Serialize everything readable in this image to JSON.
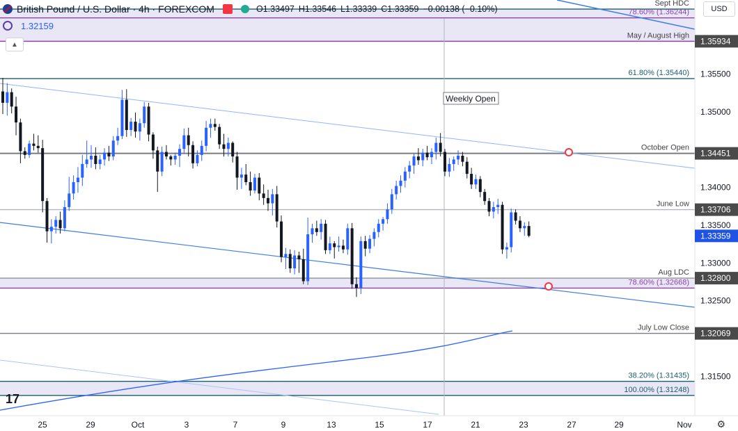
{
  "header": {
    "title": "British Pound / U.S. Dollar · 4h · FOREXCOM",
    "open": "O1.33497",
    "high": "H1.33546",
    "low": "L1.33339",
    "close": "C1.33359",
    "change": "−0.00138 (−0.10%)"
  },
  "indicator": {
    "value": "1.32159"
  },
  "currency_button": "USD",
  "logo_text": "17",
  "colors": {
    "up": "#2962ff",
    "down": "#131722",
    "accent_purple": "#8e44ad",
    "teal_line": "#1b5e6b",
    "band_fill": "#e9e6f5"
  },
  "chart_data": {
    "type": "candlestick",
    "title": "British Pound / U.S. Dollar · 4h · FOREXCOM",
    "y_axis": {
      "range": [
        1.3098,
        1.3648
      ],
      "ticks": [
        "1.35500",
        "1.35000",
        "1.34000",
        "1.33500",
        "1.33000",
        "1.32500",
        "1.31500"
      ]
    },
    "x_axis": {
      "ticks": [
        "25",
        "29",
        "Oct",
        "3",
        "7",
        "9",
        "13",
        "15",
        "17",
        "21",
        "23",
        "27",
        "29",
        "Nov"
      ]
    },
    "levels": [
      {
        "label": "Sept HDC",
        "value": 1.3636
      },
      {
        "label": "78.60% (1.36244)",
        "value": 1.36244
      },
      {
        "label": "May / August High",
        "value": 1.35934,
        "price_label": "1.35934"
      },
      {
        "label": "61.80% (1.35440)",
        "value": 1.3544
      },
      {
        "label": "October Open",
        "value": 1.34451,
        "price_label": "1.34451"
      },
      {
        "label": "June Low",
        "value": 1.33706,
        "price_label": "1.33706"
      },
      {
        "label": "Aug LDC",
        "value": 1.328,
        "price_label": "1.32800"
      },
      {
        "label": "78.60% (1.32668)",
        "value": 1.32668
      },
      {
        "label": "July Low Close",
        "value": 1.32069,
        "price_label": "1.32069"
      },
      {
        "label": "38.20% (1.31435)",
        "value": 1.31435
      },
      {
        "label": "100.00% (1.31248)",
        "value": 1.31248
      }
    ],
    "current_price": "1.33359",
    "annotations": [
      "Weekly Open"
    ],
    "candles": [
      [
        1.3527,
        1.3545,
        1.3497,
        1.3512
      ],
      [
        1.3512,
        1.3538,
        1.3495,
        1.3526
      ],
      [
        1.3526,
        1.3531,
        1.3498,
        1.3507
      ],
      [
        1.3507,
        1.352,
        1.3469,
        1.3486
      ],
      [
        1.3486,
        1.3491,
        1.3432,
        1.3448
      ],
      [
        1.3448,
        1.3453,
        1.3438,
        1.3443
      ],
      [
        1.3443,
        1.3462,
        1.3439,
        1.3458
      ],
      [
        1.3458,
        1.3471,
        1.3449,
        1.3455
      ],
      [
        1.3455,
        1.3469,
        1.3446,
        1.3452
      ],
      [
        1.3452,
        1.3463,
        1.3367,
        1.3382
      ],
      [
        1.3382,
        1.3386,
        1.3327,
        1.3342
      ],
      [
        1.3342,
        1.3358,
        1.3326,
        1.3348
      ],
      [
        1.3348,
        1.3362,
        1.3339,
        1.3357
      ],
      [
        1.3357,
        1.3368,
        1.3339,
        1.3346
      ],
      [
        1.3346,
        1.3383,
        1.3342,
        1.3374
      ],
      [
        1.3374,
        1.3414,
        1.3369,
        1.3392
      ],
      [
        1.3392,
        1.3416,
        1.3384,
        1.3407
      ],
      [
        1.3407,
        1.3427,
        1.3393,
        1.3413
      ],
      [
        1.3413,
        1.3443,
        1.3402,
        1.3431
      ],
      [
        1.3431,
        1.3462,
        1.3426,
        1.3437
      ],
      [
        1.3437,
        1.3456,
        1.3426,
        1.3442
      ],
      [
        1.3442,
        1.3453,
        1.3424,
        1.3431
      ],
      [
        1.3431,
        1.3443,
        1.3424,
        1.3437
      ],
      [
        1.3437,
        1.3452,
        1.3429,
        1.3446
      ],
      [
        1.3446,
        1.3455,
        1.3435,
        1.3441
      ],
      [
        1.3441,
        1.3468,
        1.3436,
        1.3462
      ],
      [
        1.3462,
        1.3479,
        1.3456,
        1.3468
      ],
      [
        1.3468,
        1.3529,
        1.3464,
        1.3516
      ],
      [
        1.3516,
        1.353,
        1.3467,
        1.3476
      ],
      [
        1.3476,
        1.3492,
        1.3468,
        1.3487
      ],
      [
        1.3487,
        1.3499,
        1.3466,
        1.3474
      ],
      [
        1.3474,
        1.3491,
        1.3462,
        1.3485
      ],
      [
        1.3485,
        1.3513,
        1.3479,
        1.3507
      ],
      [
        1.3507,
        1.3512,
        1.3461,
        1.347
      ],
      [
        1.347,
        1.3473,
        1.3438,
        1.3449
      ],
      [
        1.3449,
        1.3454,
        1.3394,
        1.3421
      ],
      [
        1.3421,
        1.3454,
        1.3415,
        1.3447
      ],
      [
        1.3447,
        1.3456,
        1.3437,
        1.3441
      ],
      [
        1.3441,
        1.3443,
        1.3429,
        1.3437
      ],
      [
        1.3437,
        1.3446,
        1.343,
        1.3442
      ],
      [
        1.3442,
        1.3457,
        1.3427,
        1.3451
      ],
      [
        1.3451,
        1.3478,
        1.3445,
        1.3469
      ],
      [
        1.3469,
        1.3479,
        1.3441,
        1.3456
      ],
      [
        1.3456,
        1.3461,
        1.3425,
        1.3432
      ],
      [
        1.3432,
        1.3449,
        1.3428,
        1.3443
      ],
      [
        1.3443,
        1.3462,
        1.3435,
        1.3455
      ],
      [
        1.3455,
        1.3488,
        1.3448,
        1.3479
      ],
      [
        1.3479,
        1.3491,
        1.3466,
        1.3484
      ],
      [
        1.3484,
        1.3491,
        1.3475,
        1.348
      ],
      [
        1.348,
        1.3484,
        1.3451,
        1.3457
      ],
      [
        1.3457,
        1.3471,
        1.3441,
        1.3451
      ],
      [
        1.3451,
        1.3466,
        1.3441,
        1.3459
      ],
      [
        1.3459,
        1.3461,
        1.3433,
        1.3441
      ],
      [
        1.3441,
        1.3447,
        1.3397,
        1.3413
      ],
      [
        1.3413,
        1.3426,
        1.3398,
        1.3417
      ],
      [
        1.3417,
        1.3431,
        1.3403,
        1.3407
      ],
      [
        1.3407,
        1.3421,
        1.3389,
        1.3396
      ],
      [
        1.3396,
        1.3418,
        1.3392,
        1.3413
      ],
      [
        1.3413,
        1.3419,
        1.3383,
        1.3392
      ],
      [
        1.3392,
        1.3404,
        1.3377,
        1.3386
      ],
      [
        1.3386,
        1.3397,
        1.3369,
        1.3379
      ],
      [
        1.3379,
        1.3398,
        1.3363,
        1.3391
      ],
      [
        1.3391,
        1.3402,
        1.3347,
        1.3355
      ],
      [
        1.3355,
        1.3363,
        1.3301,
        1.3308
      ],
      [
        1.3308,
        1.332,
        1.3292,
        1.3312
      ],
      [
        1.3312,
        1.3318,
        1.3287,
        1.3293
      ],
      [
        1.3293,
        1.3317,
        1.3285,
        1.331
      ],
      [
        1.331,
        1.3315,
        1.3287,
        1.3305
      ],
      [
        1.3305,
        1.3319,
        1.3272,
        1.3276
      ],
      [
        1.3276,
        1.336,
        1.3271,
        1.3338
      ],
      [
        1.3338,
        1.3352,
        1.3327,
        1.3346
      ],
      [
        1.3346,
        1.3356,
        1.3336,
        1.3341
      ],
      [
        1.3341,
        1.3358,
        1.3331,
        1.3352
      ],
      [
        1.3352,
        1.3357,
        1.3312,
        1.3317
      ],
      [
        1.3317,
        1.3335,
        1.3312,
        1.3326
      ],
      [
        1.3326,
        1.3329,
        1.3306,
        1.3321
      ],
      [
        1.3321,
        1.3335,
        1.3315,
        1.3323
      ],
      [
        1.3323,
        1.3331,
        1.3313,
        1.3318
      ],
      [
        1.3318,
        1.3352,
        1.3311,
        1.3346
      ],
      [
        1.3346,
        1.3353,
        1.3266,
        1.3272
      ],
      [
        1.3272,
        1.3281,
        1.3255,
        1.3267
      ],
      [
        1.3267,
        1.3335,
        1.3259,
        1.3329
      ],
      [
        1.3329,
        1.3336,
        1.3309,
        1.3319
      ],
      [
        1.3319,
        1.3337,
        1.3313,
        1.3332
      ],
      [
        1.3332,
        1.3346,
        1.3322,
        1.3341
      ],
      [
        1.3341,
        1.3358,
        1.3334,
        1.3352
      ],
      [
        1.3352,
        1.3361,
        1.3343,
        1.3358
      ],
      [
        1.3358,
        1.3379,
        1.3352,
        1.3371
      ],
      [
        1.3371,
        1.3398,
        1.3365,
        1.3391
      ],
      [
        1.3391,
        1.3409,
        1.3384,
        1.3402
      ],
      [
        1.3402,
        1.3416,
        1.3393,
        1.3409
      ],
      [
        1.3409,
        1.3427,
        1.34,
        1.3421
      ],
      [
        1.3421,
        1.3435,
        1.3412,
        1.3429
      ],
      [
        1.3429,
        1.3445,
        1.3418,
        1.3441
      ],
      [
        1.3441,
        1.3452,
        1.343,
        1.3436
      ],
      [
        1.3436,
        1.3451,
        1.3428,
        1.3446
      ],
      [
        1.3446,
        1.3455,
        1.3436,
        1.344
      ],
      [
        1.344,
        1.3452,
        1.3431,
        1.3447
      ],
      [
        1.3447,
        1.3466,
        1.3437,
        1.3459
      ],
      [
        1.3459,
        1.3472,
        1.3441,
        1.3447
      ],
      [
        1.3447,
        1.3451,
        1.3415,
        1.3421
      ],
      [
        1.3421,
        1.3439,
        1.3414,
        1.3431
      ],
      [
        1.3431,
        1.3441,
        1.3422,
        1.3437
      ],
      [
        1.3437,
        1.3449,
        1.343,
        1.3442
      ],
      [
        1.3442,
        1.3447,
        1.3428,
        1.3434
      ],
      [
        1.3434,
        1.344,
        1.3412,
        1.3418
      ],
      [
        1.3418,
        1.3426,
        1.3398,
        1.3404
      ],
      [
        1.3404,
        1.3417,
        1.3398,
        1.3411
      ],
      [
        1.3411,
        1.3415,
        1.3387,
        1.3394
      ],
      [
        1.3394,
        1.3398,
        1.3377,
        1.3382
      ],
      [
        1.3382,
        1.3386,
        1.3362,
        1.3368
      ],
      [
        1.3368,
        1.3381,
        1.3359,
        1.3374
      ],
      [
        1.3374,
        1.3385,
        1.3365,
        1.3377
      ],
      [
        1.3377,
        1.3381,
        1.3312,
        1.3318
      ],
      [
        1.3318,
        1.3327,
        1.3306,
        1.3321
      ],
      [
        1.3321,
        1.3372,
        1.3314,
        1.3367
      ],
      [
        1.3367,
        1.3371,
        1.3351,
        1.3356
      ],
      [
        1.3356,
        1.3362,
        1.3341,
        1.3346
      ],
      [
        1.3346,
        1.3354,
        1.3336,
        1.3349
      ],
      [
        1.3349,
        1.3355,
        1.3334,
        1.3336
      ]
    ]
  }
}
